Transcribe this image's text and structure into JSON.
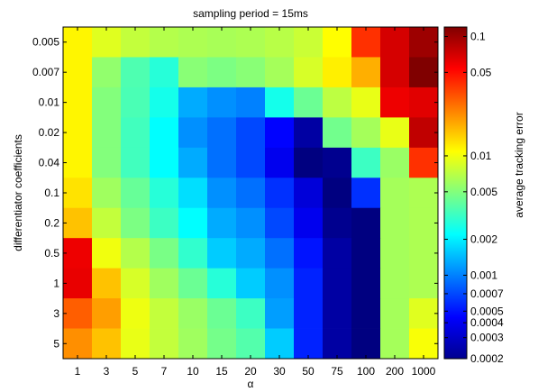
{
  "chart_data": {
    "type": "heatmap",
    "title": "sampling period = 15ms",
    "xlabel": "α",
    "ylabel": "differentiator coefficients",
    "x_categories": [
      "1",
      "3",
      "5",
      "7",
      "10",
      "15",
      "20",
      "30",
      "50",
      "75",
      "100",
      "200",
      "1000"
    ],
    "y_categories": [
      "0.005",
      "0.007",
      "0.01",
      "0.02",
      "0.04",
      "0.1",
      "0.2",
      "0.5",
      "1",
      "3",
      "5"
    ],
    "values": [
      [
        0.0115,
        0.009,
        0.0075,
        0.0068,
        0.0065,
        0.0063,
        0.0065,
        0.007,
        0.0078,
        0.011,
        0.04,
        0.07,
        0.1
      ],
      [
        0.0115,
        0.0055,
        0.0036,
        0.0028,
        0.0052,
        0.0048,
        0.0052,
        0.0062,
        0.0085,
        0.012,
        0.018,
        0.07,
        0.12
      ],
      [
        0.0115,
        0.005,
        0.0035,
        0.0025,
        0.0013,
        0.0011,
        0.001,
        0.0025,
        0.0043,
        0.0072,
        0.0095,
        0.06,
        0.065
      ],
      [
        0.0115,
        0.005,
        0.0033,
        0.0022,
        0.0011,
        0.0009,
        0.0007,
        0.00045,
        0.00025,
        0.0045,
        0.0062,
        0.0095,
        0.08
      ],
      [
        0.0115,
        0.005,
        0.0033,
        0.0022,
        0.0013,
        0.0009,
        0.0007,
        0.0004,
        0.0002,
        0.00022,
        0.0032,
        0.0058,
        0.04
      ],
      [
        0.013,
        0.006,
        0.0042,
        0.0028,
        0.0018,
        0.0011,
        0.0009,
        0.0006,
        0.00035,
        0.0002,
        0.0006,
        0.0062,
        0.0065
      ],
      [
        0.016,
        0.0075,
        0.0048,
        0.0032,
        0.0022,
        0.0013,
        0.0011,
        0.0007,
        0.0004,
        0.00022,
        0.0002,
        0.0062,
        0.0065
      ],
      [
        0.06,
        0.01,
        0.0068,
        0.0047,
        0.003,
        0.0016,
        0.0013,
        0.0009,
        0.0005,
        0.00025,
        0.0002,
        0.0062,
        0.0065
      ],
      [
        0.062,
        0.016,
        0.0085,
        0.006,
        0.0043,
        0.0028,
        0.0016,
        0.0011,
        0.00055,
        0.00025,
        0.0002,
        0.0062,
        0.0065
      ],
      [
        0.03,
        0.02,
        0.0098,
        0.0075,
        0.0058,
        0.0043,
        0.0032,
        0.0012,
        0.00055,
        0.00025,
        0.0002,
        0.0062,
        0.009
      ],
      [
        0.022,
        0.016,
        0.0095,
        0.0075,
        0.006,
        0.0046,
        0.0037,
        0.0016,
        0.00055,
        0.00025,
        0.0002,
        0.0062,
        0.0105
      ]
    ],
    "colorbar": {
      "label": "average tracking error",
      "scale": "log",
      "range": [
        0.0002,
        0.12
      ],
      "ticks": [
        0.1,
        0.05,
        0.01,
        0.005,
        0.002,
        0.001,
        0.0007,
        0.0005,
        0.0004,
        0.0003,
        0.0002
      ],
      "tick_labels": [
        "0.1",
        "0.05",
        "0.01",
        "0.005",
        "0.002",
        "0.001",
        "0.0007",
        "0.0005",
        "0.0004",
        "0.0003",
        "0.0002"
      ],
      "colormap": "jet"
    }
  }
}
